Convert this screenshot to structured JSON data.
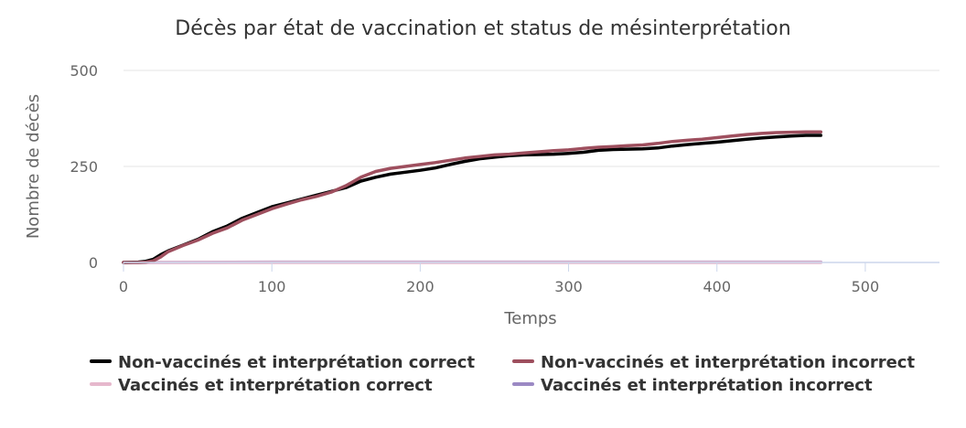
{
  "chart_data": {
    "type": "line",
    "title": "Décès par état de vaccination et status de mésinterprétation",
    "xlabel": "Temps",
    "ylabel": "Nombre de décès",
    "xlim": [
      0,
      550
    ],
    "ylim": [
      0,
      500
    ],
    "xticks": [
      "0",
      "100",
      "200",
      "300",
      "400",
      "500"
    ],
    "yticks": [
      "0",
      "250",
      "500"
    ],
    "grid": true,
    "legend_position": "bottom",
    "series": [
      {
        "name": "Non-vaccinés et interprétation correct",
        "color": "#000000",
        "points": [
          [
            0,
            0
          ],
          [
            10,
            1
          ],
          [
            15,
            3
          ],
          [
            20,
            8
          ],
          [
            25,
            20
          ],
          [
            30,
            30
          ],
          [
            40,
            45
          ],
          [
            50,
            60
          ],
          [
            60,
            80
          ],
          [
            70,
            95
          ],
          [
            80,
            115
          ],
          [
            90,
            130
          ],
          [
            100,
            145
          ],
          [
            110,
            155
          ],
          [
            120,
            165
          ],
          [
            130,
            175
          ],
          [
            140,
            185
          ],
          [
            150,
            195
          ],
          [
            160,
            212
          ],
          [
            170,
            222
          ],
          [
            180,
            230
          ],
          [
            190,
            235
          ],
          [
            200,
            240
          ],
          [
            210,
            246
          ],
          [
            220,
            255
          ],
          [
            230,
            263
          ],
          [
            240,
            270
          ],
          [
            250,
            274
          ],
          [
            260,
            278
          ],
          [
            270,
            280
          ],
          [
            280,
            281
          ],
          [
            290,
            282
          ],
          [
            300,
            284
          ],
          [
            310,
            287
          ],
          [
            320,
            292
          ],
          [
            330,
            294
          ],
          [
            340,
            295
          ],
          [
            350,
            296
          ],
          [
            360,
            298
          ],
          [
            370,
            303
          ],
          [
            380,
            307
          ],
          [
            390,
            310
          ],
          [
            400,
            313
          ],
          [
            410,
            317
          ],
          [
            420,
            321
          ],
          [
            430,
            324
          ],
          [
            440,
            327
          ],
          [
            450,
            329
          ],
          [
            460,
            331
          ],
          [
            470,
            331
          ]
        ]
      },
      {
        "name": "Non-vaccinés et interprétation incorrect",
        "color": "#9e4f5e",
        "points": [
          [
            0,
            0
          ],
          [
            10,
            0
          ],
          [
            15,
            1
          ],
          [
            20,
            4
          ],
          [
            25,
            14
          ],
          [
            30,
            28
          ],
          [
            40,
            44
          ],
          [
            50,
            58
          ],
          [
            60,
            76
          ],
          [
            70,
            90
          ],
          [
            80,
            110
          ],
          [
            90,
            125
          ],
          [
            100,
            140
          ],
          [
            110,
            152
          ],
          [
            120,
            163
          ],
          [
            130,
            172
          ],
          [
            140,
            183
          ],
          [
            150,
            200
          ],
          [
            160,
            222
          ],
          [
            170,
            237
          ],
          [
            180,
            245
          ],
          [
            190,
            250
          ],
          [
            200,
            255
          ],
          [
            210,
            260
          ],
          [
            220,
            266
          ],
          [
            230,
            272
          ],
          [
            240,
            276
          ],
          [
            250,
            280
          ],
          [
            260,
            282
          ],
          [
            270,
            285
          ],
          [
            280,
            288
          ],
          [
            290,
            291
          ],
          [
            300,
            293
          ],
          [
            310,
            297
          ],
          [
            320,
            300
          ],
          [
            330,
            302
          ],
          [
            340,
            304
          ],
          [
            350,
            306
          ],
          [
            360,
            310
          ],
          [
            370,
            315
          ],
          [
            380,
            318
          ],
          [
            390,
            321
          ],
          [
            400,
            325
          ],
          [
            410,
            329
          ],
          [
            420,
            333
          ],
          [
            430,
            336
          ],
          [
            440,
            338
          ],
          [
            450,
            339
          ],
          [
            460,
            340
          ],
          [
            470,
            340
          ]
        ]
      },
      {
        "name": "Vaccinés et interprétation correct",
        "color": "#e6b8cc",
        "points": [
          [
            0,
            0
          ],
          [
            100,
            0
          ],
          [
            200,
            0
          ],
          [
            300,
            0
          ],
          [
            400,
            0
          ],
          [
            470,
            0
          ]
        ]
      },
      {
        "name": "Vaccinés et interprétation incorrect",
        "color": "#9b89c4",
        "points": [
          [
            0,
            0
          ],
          [
            100,
            1
          ],
          [
            200,
            1
          ],
          [
            300,
            1
          ],
          [
            400,
            1
          ],
          [
            470,
            1
          ]
        ]
      }
    ]
  }
}
